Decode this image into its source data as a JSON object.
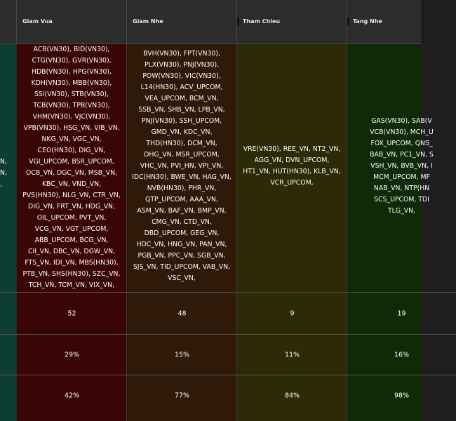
{
  "colors": {
    "header_bg": "#2c2c2c",
    "giam_vua": "#3a0505",
    "giam_nhe": "#2f1908",
    "tham_chieu": "#2d2b05",
    "tang_nhe": "#0f2a07",
    "left_col": "#0e3e33"
  },
  "header": {
    "giam_vua": "Giam Vua",
    "giam_nhe": "Giam Nhe",
    "tham_chieu": "Tham Chieu",
    "tang_nhe": "Tang Nhe"
  },
  "left_partial": {
    "lines": [
      "N,",
      "N,",
      ","
    ]
  },
  "columns": {
    "giam_vua": {
      "tickers": [
        "ACB(VN30), BID(VN30),",
        "CTG(VN30), GVR(VN30),",
        "HDB(VN30), HPG(VN30),",
        "KDH(VN30), MBB(VN30),",
        "SSI(VN30), STB(VN30),",
        "TCB(VN30), TPB(VN30),",
        "VHM(VN30), VJC(VN30),",
        "VPB(VN30), HSG_VN, VIB_VN,",
        "NKG_VN, VGC_VN,",
        "CEO(HN30), DIG_VN,",
        "VGI_UPCOM, BSR_UPCOM,",
        "OCB_VN, DGC_VN, MSB_VN,",
        "KBC_VN, VND_VN,",
        "PVS(HN30), NLG_VN, CTR_VN,",
        "DIG_VN, FRT_VN, HDG_VN,",
        "OIL_UPCOM, PVT_VN,",
        "VCG_VN, VGT_UPCOM,",
        "ABB_UPCOM, BCG_VN,",
        "CII_VN, DBC_VN, DGW_VN,",
        "FTS_VN, IDI_VN, MBS(HN30),",
        "PTB_VN, SHS(HN30), SZC_VN,",
        "TCH_VN, TCM_VN, VIX_VN,"
      ],
      "count": "52",
      "pct1": "29%",
      "pct2": "42%"
    },
    "giam_nhe": {
      "tickers": [
        "BVH(VN30), FPT(VN30),",
        "PLX(VN30), PNJ(VN30),",
        "POW(VN30), VIC(VN30),",
        "L14(HN30), ACV_UPCOM,",
        "VEA_UPCOM, BCM_VN,",
        "SSB_VN, SHB_VN, LPB_VN,",
        "PNJ(VN30), SSH_UPCOM,",
        "GMD_VN, KDC_VN,",
        "THD(HN30), DCM_VN,",
        "DHG_VN, MSR_UPCOM,",
        "VHC_VN, PVI_HN, VPI_VN,",
        "IDC(HN30), BWE_VN, HAG_VN,",
        "NVB(HN30), PHR_VN,",
        "QTP_UPCOM, AAA_VN,",
        "ASM_VN, BAF_VN, BMP_VN,",
        "CMG_VN, CTD_VN,",
        "DBD_UPCOM, GEG_VN,",
        "HDC_VN, HNG_VN, PAN_VN,",
        "PGB_VN, PPC_VN, SGB_VN,",
        "SJS_VN, TID_UPCOM, VAB_VN,",
        "VSC_VN,"
      ],
      "count": "48",
      "pct1": "15%",
      "pct2": "77%"
    },
    "tham_chieu": {
      "tickers": [
        "VRE(VN30), REE_VN, NT2_VN,",
        "AGG_VN, DVN_UPCOM,",
        "HT1_VN, HUT(HN30), KLB_VN,",
        "VCR_UPCOM,"
      ],
      "count": "9",
      "pct1": "11%",
      "pct2": "84%"
    },
    "tang_nhe": {
      "tickers": [
        "GAS(VN30), SAB(V",
        "VCB(VN30), MCH_U",
        "FOX_UPCOM, QNS_",
        "BAB_VN, PC1_VN, S",
        "VSH_VN, BVB_VN, I",
        "MCM_UPCOM, MF",
        "NAB_VN, NTP(HN",
        "SCS_UPCOM, TDI",
        "TLG_VN,"
      ],
      "count": "19",
      "pct1": "16%",
      "pct2": "98%"
    }
  }
}
